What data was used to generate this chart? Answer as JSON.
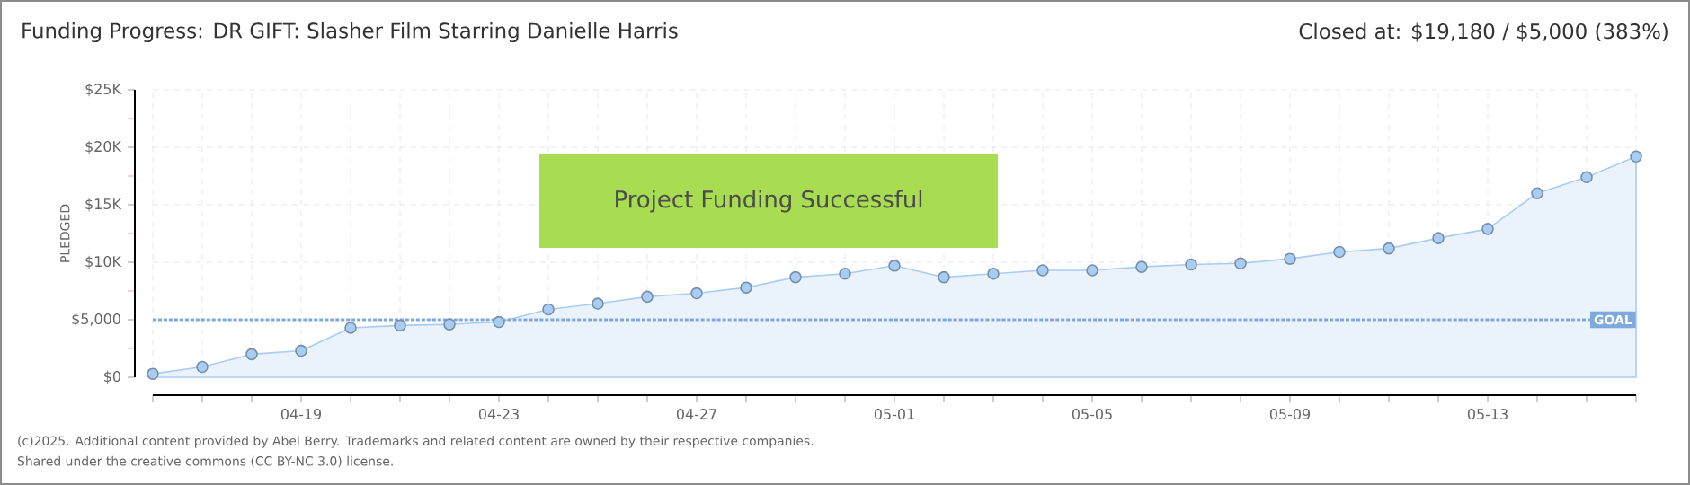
{
  "chart_data": {
    "type": "area",
    "title": "Funding Progress: DR GIFT: Slasher Film Starring Danielle Harris",
    "subtitle": "Closed at: $19,180 / $5,000 (383%)",
    "ylabel": "PLEDGED",
    "x": [
      "2025-04-16",
      "2025-04-17",
      "2025-04-18",
      "2025-04-19",
      "2025-04-20",
      "2025-04-21",
      "2025-04-22",
      "2025-04-23",
      "2025-04-24",
      "2025-04-25",
      "2025-04-26",
      "2025-04-27",
      "2025-04-28",
      "2025-04-29",
      "2025-04-30",
      "2025-05-01",
      "2025-05-02",
      "2025-05-03",
      "2025-05-04",
      "2025-05-05",
      "2025-05-06",
      "2025-05-07",
      "2025-05-08",
      "2025-05-09",
      "2025-05-10",
      "2025-05-11",
      "2025-05-12",
      "2025-05-13",
      "2025-05-14",
      "2025-05-15",
      "2025-05-16"
    ],
    "values": [
      300,
      900,
      2000,
      2300,
      4300,
      4500,
      4600,
      4800,
      5900,
      6400,
      7000,
      7300,
      7800,
      8700,
      9000,
      9700,
      8700,
      9000,
      9300,
      9300,
      9600,
      9800,
      9900,
      10300,
      10900,
      11200,
      12100,
      12900,
      16000,
      17400,
      19200
    ],
    "color": "#a9cdf2",
    "marker": "circle",
    "xlim": [
      "2025-04-16",
      "2025-05-16"
    ],
    "xticks": [
      {
        "value": "2025-04-16",
        "label": null
      },
      {
        "value": "2025-04-17",
        "label": null
      },
      {
        "value": "2025-04-18",
        "label": null
      },
      {
        "value": "2025-04-19",
        "label": "04-19"
      },
      {
        "value": "2025-04-20",
        "label": null
      },
      {
        "value": "2025-04-21",
        "label": null
      },
      {
        "value": "2025-04-22",
        "label": null
      },
      {
        "value": "2025-04-23",
        "label": "04-23"
      },
      {
        "value": "2025-04-24",
        "label": null
      },
      {
        "value": "2025-04-25",
        "label": null
      },
      {
        "value": "2025-04-26",
        "label": null
      },
      {
        "value": "2025-04-27",
        "label": "04-27"
      },
      {
        "value": "2025-04-28",
        "label": null
      },
      {
        "value": "2025-04-29",
        "label": null
      },
      {
        "value": "2025-04-30",
        "label": null
      },
      {
        "value": "2025-05-01",
        "label": "05-01"
      },
      {
        "value": "2025-05-02",
        "label": null
      },
      {
        "value": "2025-05-03",
        "label": null
      },
      {
        "value": "2025-05-04",
        "label": null
      },
      {
        "value": "2025-05-05",
        "label": "05-05"
      },
      {
        "value": "2025-05-06",
        "label": null
      },
      {
        "value": "2025-05-07",
        "label": null
      },
      {
        "value": "2025-05-08",
        "label": null
      },
      {
        "value": "2025-05-09",
        "label": "05-09"
      },
      {
        "value": "2025-05-10",
        "label": null
      },
      {
        "value": "2025-05-11",
        "label": null
      },
      {
        "value": "2025-05-12",
        "label": null
      },
      {
        "value": "2025-05-13",
        "label": "05-13"
      },
      {
        "value": "2025-05-14",
        "label": null
      },
      {
        "value": "2025-05-15",
        "label": null
      },
      {
        "value": "2025-05-16",
        "label": null
      }
    ],
    "ylim": [
      0,
      25000
    ],
    "yticks": [
      {
        "value": 0,
        "label": "$0"
      },
      {
        "value": 2500,
        "label": null
      },
      {
        "value": 5000,
        "label": "$5,000"
      },
      {
        "value": 7500,
        "label": null
      },
      {
        "value": 10000,
        "label": "$10K"
      },
      {
        "value": 12500,
        "label": null
      },
      {
        "value": 15000,
        "label": "$15K"
      },
      {
        "value": 17500,
        "label": null
      },
      {
        "value": 20000,
        "label": "$20K"
      },
      {
        "value": 22500,
        "label": null
      },
      {
        "value": 25000,
        "label": "$25K"
      }
    ],
    "grid": true,
    "ref_lines": [
      {
        "axis": "y",
        "value": 5000,
        "label": "GOAL",
        "color": "#7ea9dc",
        "line_style": "dashed"
      }
    ],
    "annotations": [
      "Project Funding Successful",
      "(c)2025. Additional content provided by Abel Berry. Trademarks and related content are owned by their respective companies.",
      "Shared under the creative commons (CC BY-NC 3.0) license."
    ]
  }
}
